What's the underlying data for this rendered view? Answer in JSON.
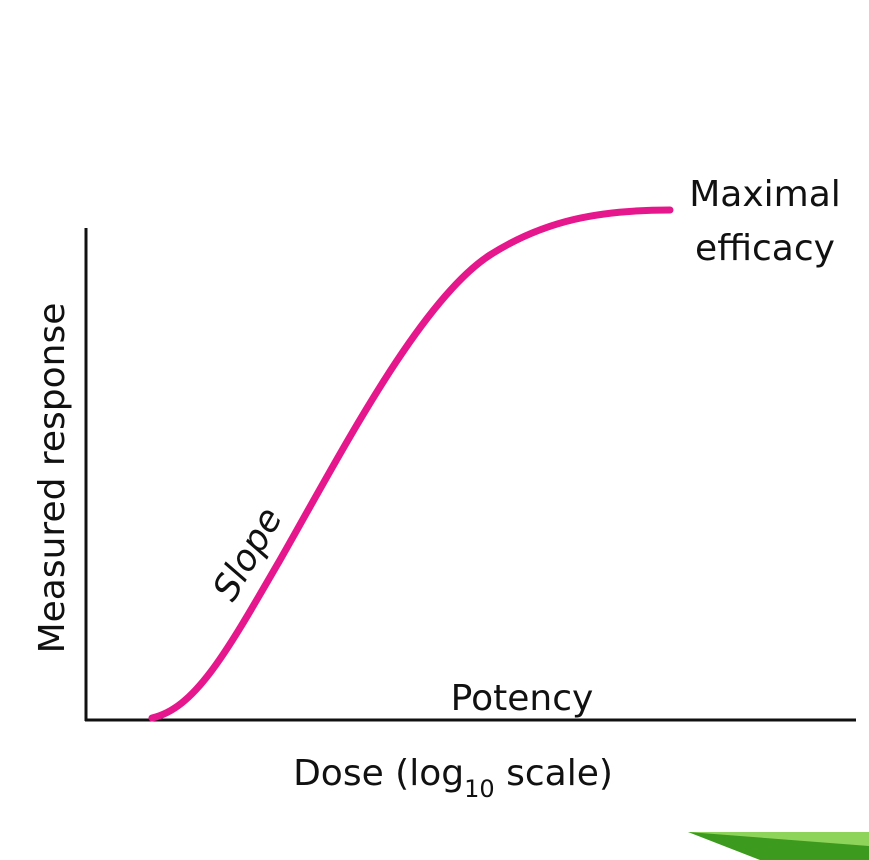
{
  "axes": {
    "y_label": "Measured response",
    "x_label": {
      "before": "Dose (log",
      "subscript": "10",
      "after": " scale)"
    }
  },
  "annotations": {
    "maximal_efficacy": [
      "Maximal",
      "efficacy"
    ],
    "slope": "Slope",
    "potency": "Potency"
  }
}
